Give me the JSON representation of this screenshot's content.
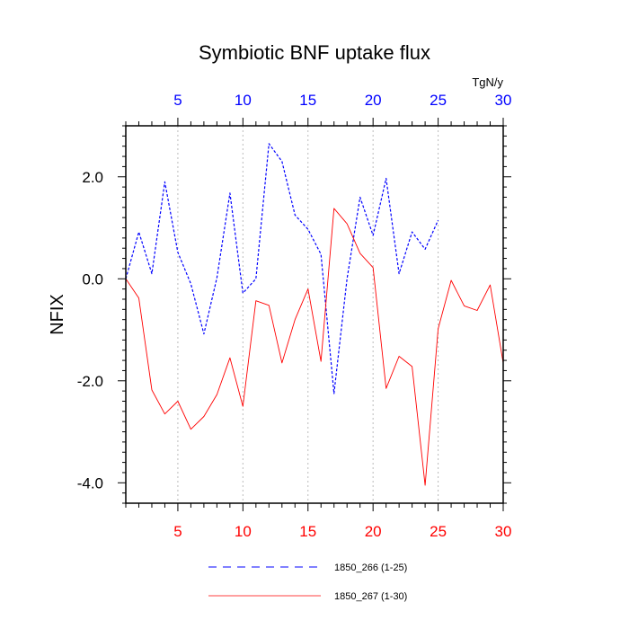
{
  "chart_data": {
    "type": "line",
    "title": "Symbiotic BNF uptake flux",
    "ylabel": "NFIX",
    "units": "TgN/y",
    "xlim": [
      1,
      30
    ],
    "ylim": [
      -4.4,
      3.0
    ],
    "yticks": [
      2.0,
      0.0,
      -2.0,
      -4.0
    ],
    "ytick_labels": [
      "2.0",
      "0.0",
      "-2.0",
      "-4.0"
    ],
    "xticks_top": [
      5,
      10,
      15,
      20,
      25,
      30
    ],
    "xticks_bottom": [
      5,
      10,
      15,
      20,
      25,
      30
    ],
    "grid_x": [
      5,
      10,
      15,
      20,
      25
    ],
    "series": [
      {
        "name": "1850_266 (1-25)",
        "color": "#0000ff",
        "dash": "dashed",
        "x": [
          1,
          2,
          3,
          4,
          5,
          6,
          7,
          8,
          9,
          10,
          11,
          12,
          13,
          14,
          15,
          16,
          17,
          18,
          19,
          20,
          21,
          22,
          23,
          24,
          25
        ],
        "y": [
          0.0,
          0.92,
          0.1,
          1.9,
          0.52,
          -0.1,
          -1.08,
          0.02,
          1.68,
          -0.28,
          0.0,
          2.65,
          2.3,
          1.25,
          0.97,
          0.48,
          -2.25,
          0.0,
          1.6,
          0.85,
          1.97,
          0.1,
          0.92,
          0.58,
          1.15
        ]
      },
      {
        "name": "1850_267 (1-30)",
        "color": "#ff0000",
        "dash": "solid",
        "x": [
          1,
          2,
          3,
          4,
          5,
          6,
          7,
          8,
          9,
          10,
          11,
          12,
          13,
          14,
          15,
          16,
          17,
          18,
          19,
          20,
          21,
          22,
          23,
          24,
          25,
          26,
          27,
          28,
          29,
          30
        ],
        "y": [
          0.0,
          -0.38,
          -2.18,
          -2.65,
          -2.4,
          -2.95,
          -2.7,
          -2.27,
          -1.55,
          -2.5,
          -0.43,
          -0.52,
          -1.65,
          -0.8,
          -0.2,
          -1.62,
          1.38,
          1.08,
          0.5,
          0.22,
          -2.15,
          -1.52,
          -1.72,
          -4.05,
          -0.98,
          -0.03,
          -0.53,
          -0.62,
          -0.12,
          -1.65
        ]
      }
    ],
    "legend": "bottom"
  }
}
